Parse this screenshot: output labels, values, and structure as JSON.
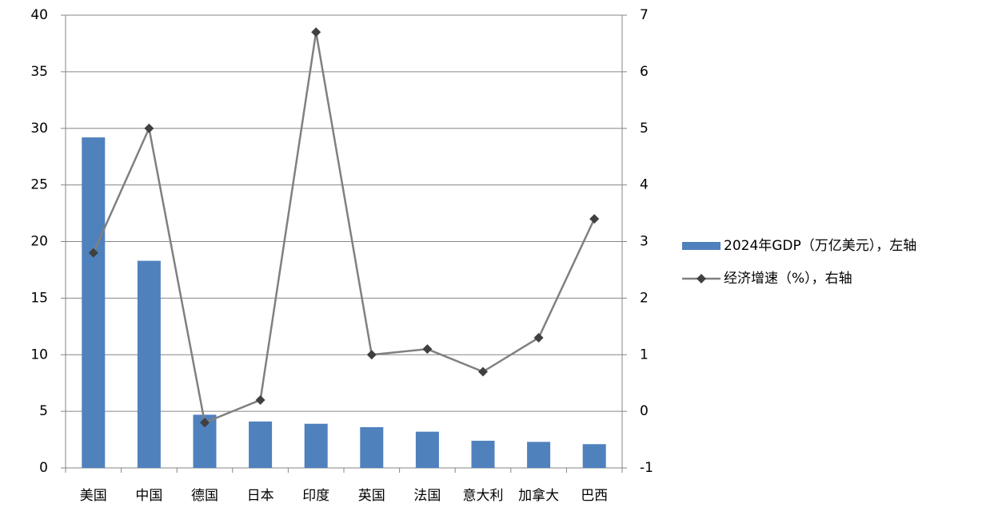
{
  "chart_data": {
    "type": "bar-line",
    "categories": [
      "美国",
      "中国",
      "德国",
      "日本",
      "印度",
      "英国",
      "法国",
      "意大利",
      "加拿大",
      "巴西"
    ],
    "series": [
      {
        "name": "2024年GDP（万亿美元），左轴",
        "type": "bar",
        "color": "#4f81bd",
        "values": [
          29.2,
          18.3,
          4.7,
          4.1,
          3.9,
          3.6,
          3.2,
          2.4,
          2.3,
          2.1
        ]
      },
      {
        "name": "经济增速（%），右轴",
        "type": "line",
        "axis": "y2",
        "color": "#808080",
        "values": [
          2.8,
          5.0,
          -0.2,
          0.2,
          6.7,
          1.0,
          1.1,
          0.7,
          1.3,
          3.4
        ]
      }
    ],
    "ylim": [
      0,
      40
    ],
    "yticks": [
      0,
      5,
      10,
      15,
      20,
      25,
      30,
      35,
      40
    ],
    "y2lim": [
      -1,
      7
    ],
    "y2ticks": [
      -1,
      0,
      1,
      2,
      3,
      4,
      5,
      6,
      7
    ],
    "grid": true,
    "legend": "right"
  }
}
